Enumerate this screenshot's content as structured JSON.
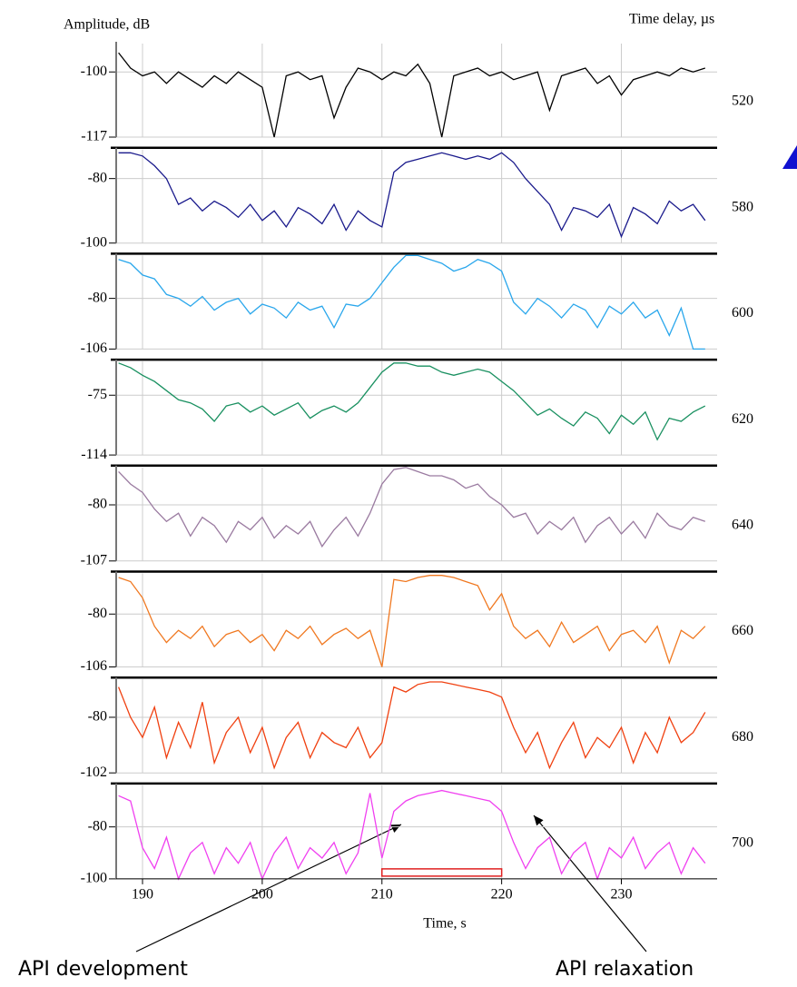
{
  "chart_data": {
    "type": "line",
    "ylabel": "Amplitude, dB",
    "y2label": "Time delay, µs",
    "xlabel": "Time, s",
    "xlim": [
      187.8,
      238
    ],
    "xticks": [
      190,
      200,
      210,
      220,
      230
    ],
    "grid": true,
    "interval": [
      210,
      220
    ],
    "annotations": [
      "API development",
      "API relaxation"
    ],
    "x": [
      188,
      189,
      190,
      191,
      192,
      193,
      194,
      195,
      196,
      197,
      198,
      199,
      200,
      201,
      202,
      203,
      204,
      205,
      206,
      207,
      208,
      209,
      210,
      211,
      212,
      213,
      214,
      215,
      216,
      217,
      218,
      219,
      220,
      221,
      222,
      223,
      224,
      225,
      226,
      227,
      228,
      229,
      230,
      231,
      232,
      233,
      234,
      235,
      236,
      237
    ],
    "panels": [
      {
        "delay": 520,
        "color": "#000000",
        "ylim": [
          -117,
          -92.6
        ],
        "yticks": [
          -100,
          -117
        ],
        "values": [
          -95,
          -99,
          -101,
          -100,
          -103,
          -100,
          -102,
          -104,
          -101,
          -103,
          -100,
          -102,
          -104,
          -117,
          -101,
          -100,
          -102,
          -101,
          -112,
          -104,
          -99,
          -100,
          -102,
          -100,
          -101,
          -98,
          -103,
          -117,
          -101,
          -100,
          -99,
          -101,
          -100,
          -102,
          -101,
          -100,
          -110,
          -101,
          -100,
          -99,
          -103,
          -101,
          -106,
          -102,
          -101,
          -100,
          -101,
          -99,
          -100,
          -99
        ]
      },
      {
        "delay": 580,
        "color": "#1a1a8c",
        "ylim": [
          -100,
          -71
        ],
        "yticks": [
          -80,
          -100
        ],
        "values": [
          -72,
          -72,
          -73,
          -76,
          -80,
          -88,
          -86,
          -90,
          -87,
          -89,
          -92,
          -88,
          -93,
          -90,
          -95,
          -89,
          -91,
          -94,
          -88,
          -96,
          -90,
          -93,
          -95,
          -78,
          -75,
          -74,
          -73,
          -72,
          -73,
          -74,
          -73,
          -74,
          -72,
          -75,
          -80,
          -84,
          -88,
          -96,
          -89,
          -90,
          -92,
          -88,
          -98,
          -89,
          -91,
          -94,
          -87,
          -90,
          -88,
          -93
        ]
      },
      {
        "delay": 600,
        "color": "#2aa7ec",
        "ylim": [
          -106,
          -58
        ],
        "yticks": [
          -80,
          -106
        ],
        "values": [
          -60,
          -62,
          -68,
          -70,
          -78,
          -80,
          -84,
          -79,
          -86,
          -82,
          -80,
          -88,
          -83,
          -85,
          -90,
          -82,
          -86,
          -84,
          -95,
          -83,
          -84,
          -80,
          -72,
          -64,
          -58,
          -58,
          -60,
          -62,
          -66,
          -64,
          -60,
          -62,
          -66,
          -82,
          -88,
          -80,
          -84,
          -90,
          -83,
          -86,
          -95,
          -84,
          -88,
          -82,
          -90,
          -86,
          -99,
          -85,
          -106,
          -106
        ]
      },
      {
        "delay": 620,
        "color": "#199060",
        "ylim": [
          -114,
          -53
        ],
        "yticks": [
          -75,
          -114
        ],
        "values": [
          -54,
          -57,
          -62,
          -66,
          -72,
          -78,
          -80,
          -84,
          -92,
          -82,
          -80,
          -86,
          -82,
          -88,
          -84,
          -80,
          -90,
          -85,
          -82,
          -86,
          -80,
          -70,
          -60,
          -54,
          -54,
          -56,
          -56,
          -60,
          -62,
          -60,
          -58,
          -60,
          -66,
          -72,
          -80,
          -88,
          -84,
          -90,
          -95,
          -86,
          -90,
          -100,
          -88,
          -94,
          -86,
          -104,
          -90,
          -92,
          -86,
          -82
        ]
      },
      {
        "delay": 640,
        "color": "#9a7aa0",
        "ylim": [
          -107,
          -62
        ],
        "yticks": [
          -80,
          -107
        ],
        "values": [
          -64,
          -70,
          -74,
          -82,
          -88,
          -84,
          -95,
          -86,
          -90,
          -98,
          -88,
          -92,
          -86,
          -96,
          -90,
          -94,
          -88,
          -100,
          -92,
          -86,
          -95,
          -84,
          -70,
          -63,
          -62,
          -64,
          -66,
          -66,
          -68,
          -72,
          -70,
          -76,
          -80,
          -86,
          -84,
          -94,
          -88,
          -92,
          -86,
          -98,
          -90,
          -86,
          -94,
          -88,
          -96,
          -84,
          -90,
          -92,
          -86,
          -88
        ]
      },
      {
        "delay": 660,
        "color": "#f07820",
        "ylim": [
          -106,
          -60
        ],
        "yticks": [
          -80,
          -106
        ],
        "values": [
          -62,
          -64,
          -72,
          -86,
          -94,
          -88,
          -92,
          -86,
          -96,
          -90,
          -88,
          -94,
          -90,
          -98,
          -88,
          -92,
          -86,
          -95,
          -90,
          -87,
          -92,
          -88,
          -106,
          -63,
          -64,
          -62,
          -61,
          -61,
          -62,
          -64,
          -66,
          -78,
          -70,
          -86,
          -92,
          -88,
          -96,
          -84,
          -94,
          -90,
          -86,
          -98,
          -90,
          -88,
          -94,
          -86,
          -104,
          -88,
          -92,
          -86
        ]
      },
      {
        "delay": 680,
        "color": "#f04010",
        "ylim": [
          -102,
          -65
        ],
        "yticks": [
          -80,
          -102
        ],
        "values": [
          -68,
          -80,
          -88,
          -76,
          -96,
          -82,
          -92,
          -74,
          -98,
          -86,
          -80,
          -94,
          -84,
          -100,
          -88,
          -82,
          -96,
          -86,
          -90,
          -92,
          -84,
          -96,
          -90,
          -68,
          -70,
          -67,
          -66,
          -66,
          -67,
          -68,
          -69,
          -70,
          -72,
          -84,
          -94,
          -86,
          -100,
          -90,
          -82,
          -96,
          -88,
          -92,
          -84,
          -98,
          -86,
          -94,
          -80,
          -90,
          -86,
          -78
        ]
      },
      {
        "delay": 700,
        "color": "#f040f0",
        "ylim": [
          -100,
          -64
        ],
        "yticks": [
          -80,
          -100
        ],
        "values": [
          -68,
          -70,
          -88,
          -96,
          -84,
          -100,
          -90,
          -86,
          -98,
          -88,
          -94,
          -86,
          -100,
          -90,
          -84,
          -96,
          -88,
          -92,
          -86,
          -98,
          -90,
          -67,
          -92,
          -74,
          -70,
          -68,
          -67,
          -66,
          -67,
          -68,
          -69,
          -70,
          -74,
          -86,
          -96,
          -88,
          -84,
          -98,
          -90,
          -86,
          -100,
          -88,
          -92,
          -84,
          -96,
          -90,
          -86,
          -98,
          -88,
          -94
        ]
      }
    ]
  }
}
